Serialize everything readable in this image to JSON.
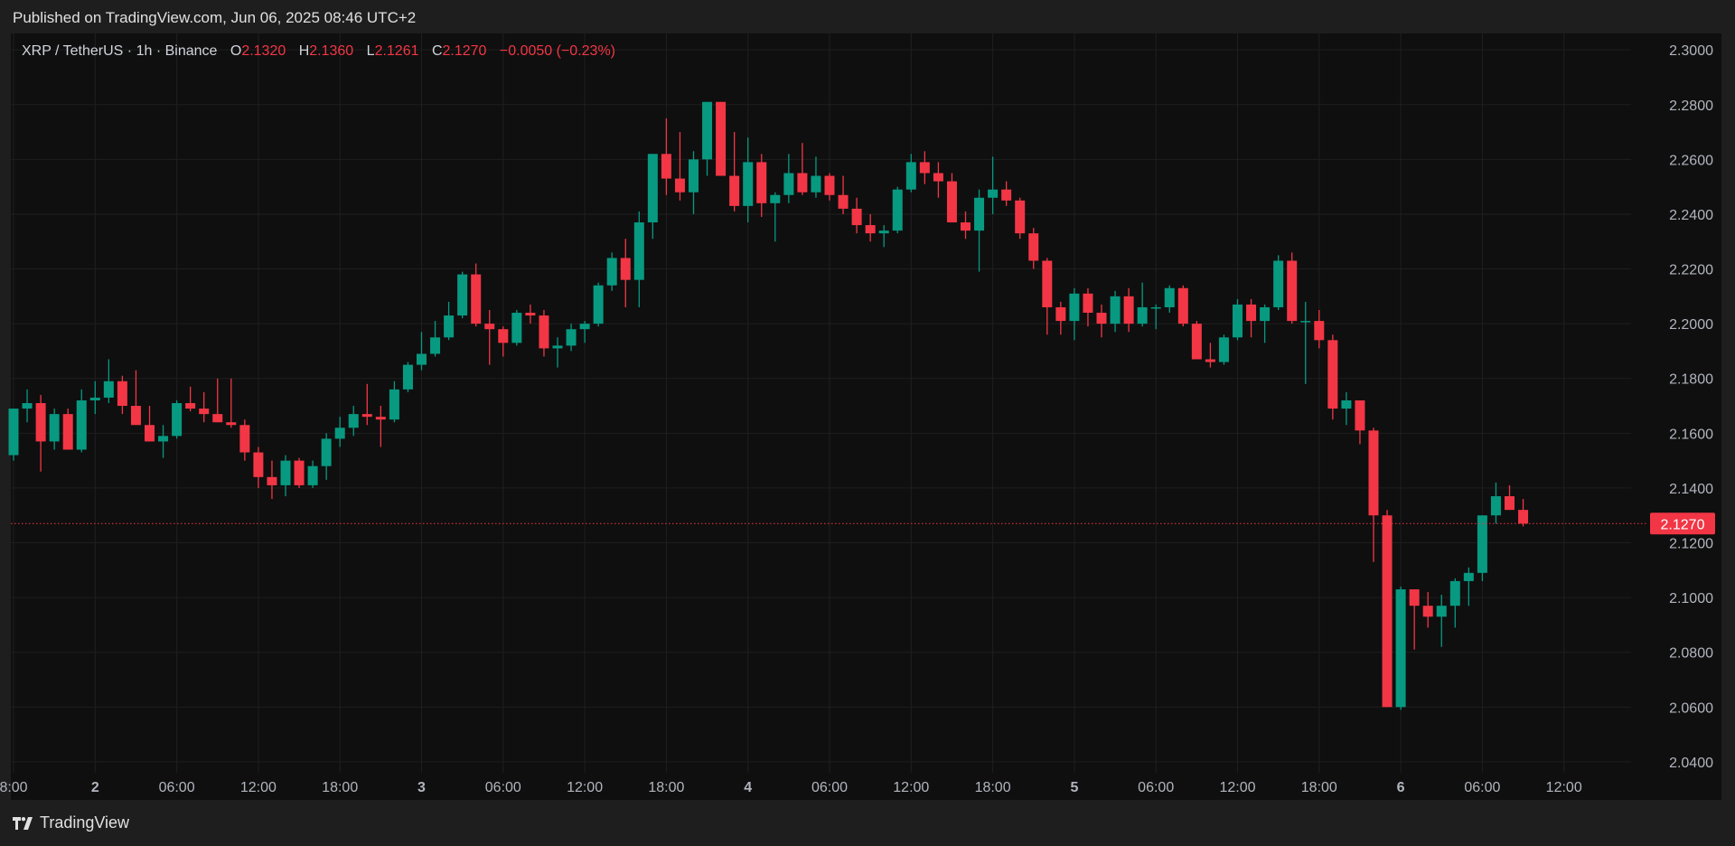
{
  "header": {
    "published": "Published on TradingView.com, Jun 06, 2025 08:46 UTC+2"
  },
  "footer": {
    "brand": "TradingView"
  },
  "legend": {
    "symbol": "XRP / TetherUS · 1h · Binance",
    "o_label": "O",
    "o_value": "2.1320",
    "h_label": "H",
    "h_value": "2.1360",
    "l_label": "L",
    "l_value": "2.1261",
    "c_label": "C",
    "c_value": "2.1270",
    "change": "−0.0050 (−0.23%)"
  },
  "colors": {
    "up": "#089981",
    "down": "#f23645",
    "background": "#0f0f0f",
    "grid": "#1f1f1f",
    "text": "#b2b5be"
  },
  "chart_data": {
    "type": "candlestick",
    "interval": "1h",
    "ylim": [
      2.036,
      2.306
    ],
    "y_ticks": [
      "2.0400",
      "2.0600",
      "2.0800",
      "2.1000",
      "2.1200",
      "2.1400",
      "2.1600",
      "2.1800",
      "2.2000",
      "2.2200",
      "2.2400",
      "2.2600",
      "2.2800",
      "2.3000"
    ],
    "x_ticks": [
      {
        "label": "8:00",
        "i": 0,
        "bold": false
      },
      {
        "label": "2",
        "i": 6,
        "bold": true
      },
      {
        "label": "06:00",
        "i": 12,
        "bold": false
      },
      {
        "label": "12:00",
        "i": 18,
        "bold": false
      },
      {
        "label": "18:00",
        "i": 24,
        "bold": false
      },
      {
        "label": "3",
        "i": 30,
        "bold": true
      },
      {
        "label": "06:00",
        "i": 36,
        "bold": false
      },
      {
        "label": "12:00",
        "i": 42,
        "bold": false
      },
      {
        "label": "18:00",
        "i": 48,
        "bold": false
      },
      {
        "label": "4",
        "i": 54,
        "bold": true
      },
      {
        "label": "06:00",
        "i": 60,
        "bold": false
      },
      {
        "label": "12:00",
        "i": 66,
        "bold": false
      },
      {
        "label": "18:00",
        "i": 72,
        "bold": false
      },
      {
        "label": "5",
        "i": 78,
        "bold": true
      },
      {
        "label": "06:00",
        "i": 84,
        "bold": false
      },
      {
        "label": "12:00",
        "i": 90,
        "bold": false
      },
      {
        "label": "18:00",
        "i": 96,
        "bold": false
      },
      {
        "label": "6",
        "i": 102,
        "bold": true
      },
      {
        "label": "06:00",
        "i": 108,
        "bold": false
      },
      {
        "label": "12:00",
        "i": 114,
        "bold": false
      }
    ],
    "last_price": 2.127,
    "last_price_label": "2.1270",
    "candles": [
      [
        2.152,
        2.169,
        2.15,
        2.169
      ],
      [
        2.169,
        2.176,
        2.164,
        2.171
      ],
      [
        2.171,
        2.174,
        2.146,
        2.157
      ],
      [
        2.157,
        2.169,
        2.154,
        2.167
      ],
      [
        2.167,
        2.169,
        2.154,
        2.154
      ],
      [
        2.154,
        2.176,
        2.153,
        2.172
      ],
      [
        2.172,
        2.179,
        2.167,
        2.173
      ],
      [
        2.173,
        2.187,
        2.171,
        2.179
      ],
      [
        2.179,
        2.181,
        2.167,
        2.17
      ],
      [
        2.17,
        2.183,
        2.164,
        2.163
      ],
      [
        2.163,
        2.17,
        2.157,
        2.157
      ],
      [
        2.157,
        2.163,
        2.151,
        2.159
      ],
      [
        2.159,
        2.172,
        2.158,
        2.171
      ],
      [
        2.171,
        2.177,
        2.168,
        2.169
      ],
      [
        2.169,
        2.175,
        2.164,
        2.167
      ],
      [
        2.167,
        2.18,
        2.164,
        2.164
      ],
      [
        2.164,
        2.18,
        2.162,
        2.163
      ],
      [
        2.163,
        2.165,
        2.15,
        2.153
      ],
      [
        2.153,
        2.155,
        2.14,
        2.144
      ],
      [
        2.144,
        2.15,
        2.136,
        2.141
      ],
      [
        2.141,
        2.152,
        2.137,
        2.15
      ],
      [
        2.15,
        2.151,
        2.14,
        2.141
      ],
      [
        2.141,
        2.15,
        2.14,
        2.148
      ],
      [
        2.148,
        2.16,
        2.143,
        2.158
      ],
      [
        2.158,
        2.166,
        2.155,
        2.162
      ],
      [
        2.162,
        2.17,
        2.159,
        2.167
      ],
      [
        2.167,
        2.178,
        2.163,
        2.166
      ],
      [
        2.166,
        2.17,
        2.155,
        2.165
      ],
      [
        2.165,
        2.179,
        2.164,
        2.176
      ],
      [
        2.176,
        2.186,
        2.175,
        2.185
      ],
      [
        2.185,
        2.197,
        2.183,
        2.189
      ],
      [
        2.189,
        2.201,
        2.188,
        2.195
      ],
      [
        2.195,
        2.208,
        2.194,
        2.203
      ],
      [
        2.203,
        2.219,
        2.202,
        2.218
      ],
      [
        2.218,
        2.222,
        2.199,
        2.2
      ],
      [
        2.2,
        2.205,
        2.185,
        2.198
      ],
      [
        2.198,
        2.199,
        2.188,
        2.193
      ],
      [
        2.193,
        2.205,
        2.192,
        2.204
      ],
      [
        2.204,
        2.207,
        2.2,
        2.203
      ],
      [
        2.203,
        2.205,
        2.188,
        2.191
      ],
      [
        2.191,
        2.195,
        2.184,
        2.192
      ],
      [
        2.192,
        2.2,
        2.19,
        2.198
      ],
      [
        2.198,
        2.201,
        2.193,
        2.2
      ],
      [
        2.2,
        2.215,
        2.199,
        2.214
      ],
      [
        2.214,
        2.226,
        2.212,
        2.224
      ],
      [
        2.224,
        2.231,
        2.206,
        2.216
      ],
      [
        2.216,
        2.241,
        2.206,
        2.237
      ],
      [
        2.237,
        2.262,
        2.231,
        2.262
      ],
      [
        2.262,
        2.275,
        2.247,
        2.253
      ],
      [
        2.253,
        2.27,
        2.245,
        2.248
      ],
      [
        2.248,
        2.263,
        2.24,
        2.26
      ],
      [
        2.26,
        2.281,
        2.254,
        2.281
      ],
      [
        2.281,
        2.281,
        2.255,
        2.254
      ],
      [
        2.254,
        2.27,
        2.241,
        2.243
      ],
      [
        2.243,
        2.268,
        2.237,
        2.259
      ],
      [
        2.259,
        2.262,
        2.239,
        2.244
      ],
      [
        2.244,
        2.248,
        2.23,
        2.247
      ],
      [
        2.247,
        2.262,
        2.244,
        2.255
      ],
      [
        2.255,
        2.266,
        2.247,
        2.248
      ],
      [
        2.248,
        2.261,
        2.246,
        2.254
      ],
      [
        2.254,
        2.255,
        2.245,
        2.247
      ],
      [
        2.247,
        2.254,
        2.24,
        2.242
      ],
      [
        2.242,
        2.246,
        2.233,
        2.236
      ],
      [
        2.236,
        2.24,
        2.23,
        2.233
      ],
      [
        2.233,
        2.236,
        2.228,
        2.234
      ],
      [
        2.234,
        2.25,
        2.233,
        2.249
      ],
      [
        2.249,
        2.262,
        2.248,
        2.259
      ],
      [
        2.259,
        2.263,
        2.251,
        2.255
      ],
      [
        2.255,
        2.259,
        2.246,
        2.252
      ],
      [
        2.252,
        2.255,
        2.237,
        2.237
      ],
      [
        2.237,
        2.241,
        2.231,
        2.234
      ],
      [
        2.234,
        2.249,
        2.219,
        2.246
      ],
      [
        2.246,
        2.261,
        2.24,
        2.249
      ],
      [
        2.249,
        2.252,
        2.243,
        2.245
      ],
      [
        2.245,
        2.246,
        2.231,
        2.233
      ],
      [
        2.233,
        2.235,
        2.22,
        2.223
      ],
      [
        2.223,
        2.224,
        2.196,
        2.206
      ],
      [
        2.206,
        2.208,
        2.196,
        2.201
      ],
      [
        2.201,
        2.213,
        2.194,
        2.211
      ],
      [
        2.211,
        2.213,
        2.199,
        2.204
      ],
      [
        2.204,
        2.207,
        2.195,
        2.2
      ],
      [
        2.2,
        2.212,
        2.197,
        2.21
      ],
      [
        2.21,
        2.213,
        2.197,
        2.2
      ],
      [
        2.2,
        2.215,
        2.199,
        2.206
      ],
      [
        2.206,
        2.207,
        2.198,
        2.206
      ],
      [
        2.206,
        2.214,
        2.204,
        2.213
      ],
      [
        2.213,
        2.214,
        2.199,
        2.2
      ],
      [
        2.2,
        2.201,
        2.187,
        2.187
      ],
      [
        2.187,
        2.193,
        2.184,
        2.186
      ],
      [
        2.186,
        2.196,
        2.185,
        2.195
      ],
      [
        2.195,
        2.209,
        2.194,
        2.207
      ],
      [
        2.207,
        2.209,
        2.195,
        2.201
      ],
      [
        2.201,
        2.207,
        2.193,
        2.206
      ],
      [
        2.206,
        2.225,
        2.205,
        2.223
      ],
      [
        2.223,
        2.226,
        2.2,
        2.201
      ],
      [
        2.201,
        2.208,
        2.178,
        2.201
      ],
      [
        2.201,
        2.205,
        2.191,
        2.194
      ],
      [
        2.194,
        2.196,
        2.165,
        2.169
      ],
      [
        2.169,
        2.175,
        2.163,
        2.172
      ],
      [
        2.172,
        2.172,
        2.156,
        2.161
      ],
      [
        2.161,
        2.162,
        2.113,
        2.13
      ],
      [
        2.13,
        2.132,
        2.06,
        2.06
      ],
      [
        2.06,
        2.104,
        2.059,
        2.103
      ],
      [
        2.103,
        2.103,
        2.081,
        2.097
      ],
      [
        2.097,
        2.102,
        2.089,
        2.093
      ],
      [
        2.093,
        2.101,
        2.082,
        2.097
      ],
      [
        2.097,
        2.107,
        2.089,
        2.106
      ],
      [
        2.106,
        2.111,
        2.097,
        2.109
      ],
      [
        2.109,
        2.13,
        2.106,
        2.13
      ],
      [
        2.13,
        2.142,
        2.127,
        2.137
      ],
      [
        2.137,
        2.141,
        2.132,
        2.132
      ],
      [
        2.132,
        2.136,
        2.126,
        2.127
      ]
    ]
  }
}
